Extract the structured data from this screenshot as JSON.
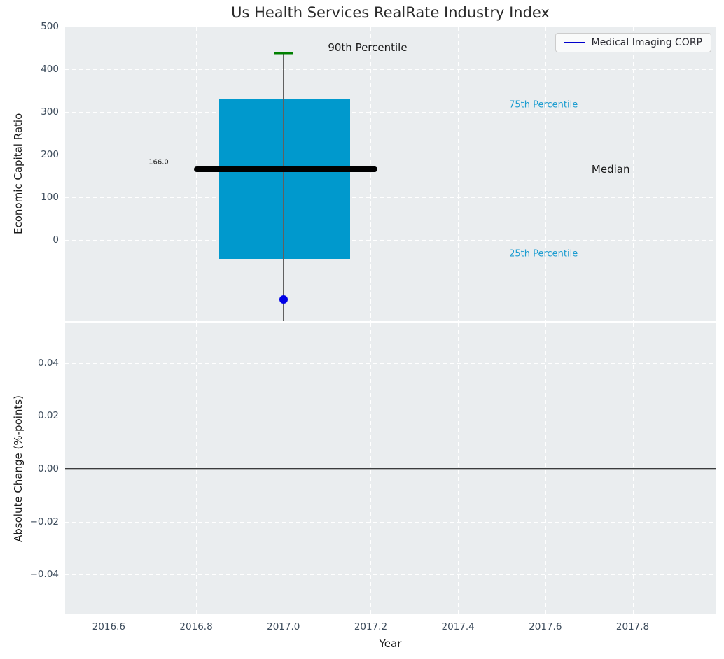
{
  "figure": {
    "title": "Us Health Services RealRate Industry Index",
    "legend": {
      "label": "Medical Imaging CORP",
      "position": "upper right"
    }
  },
  "colors": {
    "plot_bg": "#eaedef",
    "grid": "#ffffff",
    "tick_label": "#3d4c5c",
    "box_fill": "#0099cd",
    "median_line": "#000000",
    "whisker": "#606060",
    "p90_cap": "#008000",
    "company_marker": "#0000e6",
    "legend_line": "#0000cc",
    "percentile_label": "#1b9cd0",
    "zero_line": "#000000"
  },
  "chart_data": [
    {
      "type": "boxplot",
      "title": "Us Health Services RealRate Industry Index",
      "xlabel": "",
      "ylabel": "Economic Capital Ratio",
      "xlim": [
        2016.5,
        2017.99
      ],
      "ylim": [
        -190,
        500
      ],
      "grid": true,
      "legend_position": "upper right",
      "yticks": [
        {
          "v": 500,
          "label": "500"
        },
        {
          "v": 400,
          "label": "400"
        },
        {
          "v": 300,
          "label": "300"
        },
        {
          "v": 200,
          "label": "200"
        },
        {
          "v": 100,
          "label": "100"
        },
        {
          "v": 0,
          "label": "0"
        }
      ],
      "xticks": [
        {
          "v": 2016.6,
          "label": "2016.6"
        },
        {
          "v": 2016.8,
          "label": "2016.8"
        },
        {
          "v": 2017.0,
          "label": "2017.0"
        },
        {
          "v": 2017.2,
          "label": "2017.2"
        },
        {
          "v": 2017.4,
          "label": "2017.4"
        },
        {
          "v": 2017.6,
          "label": "2017.6"
        },
        {
          "v": 2017.8,
          "label": "2017.8"
        }
      ],
      "show_xtick_labels": false,
      "box": {
        "x_center": 2017.0,
        "x_left": 2016.853,
        "x_right": 2017.153,
        "q1": -44,
        "median": 166.0,
        "q3": 329,
        "p90": 437,
        "whisker_low_clipped": true,
        "median_line_x_left": 2016.795,
        "median_line_x_right": 2017.215,
        "cap_half_width": 0.021
      },
      "points": [
        {
          "name": "Medical Imaging CORP",
          "x": 2017.0,
          "y": -140
        }
      ],
      "annotations": [
        {
          "text": "166.0",
          "x": 2016.737,
          "y": 182,
          "ha": "right",
          "size": "sm",
          "color": "#262626"
        },
        {
          "text": "90th Percentile",
          "x": 2017.102,
          "y": 451,
          "ha": "left",
          "size": "lg",
          "color": "#1a1a1a"
        },
        {
          "text": "75th Percentile",
          "x": 2017.517,
          "y": 316,
          "ha": "left",
          "size": "md",
          "color": "#1b9cd0"
        },
        {
          "text": "Median",
          "x": 2017.706,
          "y": 166,
          "ha": "left",
          "size": "lg",
          "color": "#1a1a1a"
        },
        {
          "text": "25th Percentile",
          "x": 2017.517,
          "y": -32,
          "ha": "left",
          "size": "md",
          "color": "#1b9cd0"
        }
      ]
    },
    {
      "type": "line",
      "xlabel": "Year",
      "ylabel": "Absolute Change (%-points)",
      "xlim": [
        2016.5,
        2017.99
      ],
      "ylim": [
        -0.055,
        0.055
      ],
      "grid": true,
      "yticks": [
        {
          "v": 0.04,
          "label": "0.04"
        },
        {
          "v": 0.02,
          "label": "0.02"
        },
        {
          "v": 0.0,
          "label": "0.00"
        },
        {
          "v": -0.02,
          "label": "−0.02"
        },
        {
          "v": -0.04,
          "label": "−0.04"
        }
      ],
      "xticks": [
        {
          "v": 2016.6,
          "label": "2016.6"
        },
        {
          "v": 2016.8,
          "label": "2016.8"
        },
        {
          "v": 2017.0,
          "label": "2017.0"
        },
        {
          "v": 2017.2,
          "label": "2017.2"
        },
        {
          "v": 2017.4,
          "label": "2017.4"
        },
        {
          "v": 2017.6,
          "label": "2017.6"
        },
        {
          "v": 2017.8,
          "label": "2017.8"
        }
      ],
      "show_xtick_labels": true,
      "zero_line": 0.0,
      "series": []
    }
  ]
}
